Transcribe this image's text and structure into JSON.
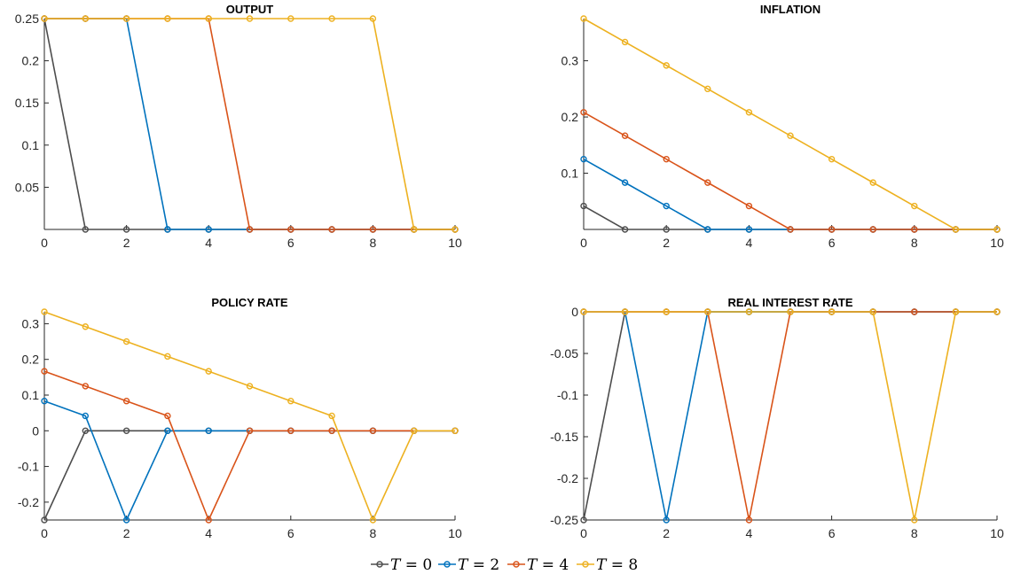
{
  "chart_data": [
    {
      "type": "line",
      "title": "OUTPUT",
      "xlim": [
        0,
        10
      ],
      "ylim": [
        0,
        0.25
      ],
      "xticks": [
        0,
        2,
        4,
        6,
        8,
        10
      ],
      "xtick_labels": [
        "0",
        "2",
        "4",
        "6",
        "8",
        "10"
      ],
      "yticks": [
        0.05,
        0.1,
        0.15,
        0.2,
        0.25
      ],
      "ytick_labels": [
        "0.05",
        "0.1",
        "0.15",
        "0.2",
        "0.25"
      ],
      "x": [
        0,
        1,
        2,
        3,
        4,
        5,
        6,
        7,
        8,
        9,
        10
      ],
      "series": [
        {
          "name": "T = 0",
          "values": [
            0.25,
            0,
            0,
            0,
            0,
            0,
            0,
            0,
            0,
            0,
            0
          ]
        },
        {
          "name": "T = 2",
          "values": [
            0.25,
            0.25,
            0.25,
            0,
            0,
            0,
            0,
            0,
            0,
            0,
            0
          ]
        },
        {
          "name": "T = 4",
          "values": [
            0.25,
            0.25,
            0.25,
            0.25,
            0.25,
            0,
            0,
            0,
            0,
            0,
            0
          ]
        },
        {
          "name": "T = 8",
          "values": [
            0.25,
            0.25,
            0.25,
            0.25,
            0.25,
            0.25,
            0.25,
            0.25,
            0.25,
            0,
            0
          ]
        }
      ]
    },
    {
      "type": "line",
      "title": "INFLATION",
      "xlim": [
        0,
        10
      ],
      "ylim": [
        0,
        0.375
      ],
      "xticks": [
        0,
        2,
        4,
        6,
        8,
        10
      ],
      "xtick_labels": [
        "0",
        "2",
        "4",
        "6",
        "8",
        "10"
      ],
      "yticks": [
        0.1,
        0.2,
        0.3
      ],
      "ytick_labels": [
        "0.1",
        "0.2",
        "0.3"
      ],
      "x": [
        0,
        1,
        2,
        3,
        4,
        5,
        6,
        7,
        8,
        9,
        10
      ],
      "series": [
        {
          "name": "T = 0",
          "values": [
            0.0417,
            0,
            0,
            0,
            0,
            0,
            0,
            0,
            0,
            0,
            0
          ]
        },
        {
          "name": "T = 2",
          "values": [
            0.125,
            0.0833,
            0.0417,
            0,
            0,
            0,
            0,
            0,
            0,
            0,
            0
          ]
        },
        {
          "name": "T = 4",
          "values": [
            0.2083,
            0.1667,
            0.125,
            0.0833,
            0.0417,
            0,
            0,
            0,
            0,
            0,
            0
          ]
        },
        {
          "name": "T = 8",
          "values": [
            0.375,
            0.3333,
            0.2917,
            0.25,
            0.2083,
            0.1667,
            0.125,
            0.0833,
            0.0417,
            0,
            0
          ]
        }
      ]
    },
    {
      "type": "line",
      "title": "POLICY RATE",
      "xlim": [
        0,
        10
      ],
      "ylim": [
        -0.25,
        0.3333
      ],
      "xticks": [
        0,
        2,
        4,
        6,
        8,
        10
      ],
      "xtick_labels": [
        "0",
        "2",
        "4",
        "6",
        "8",
        "10"
      ],
      "yticks": [
        -0.2,
        -0.1,
        0,
        0.1,
        0.2,
        0.3
      ],
      "ytick_labels": [
        "-0.2",
        "-0.1",
        "0",
        "0.1",
        "0.2",
        "0.3"
      ],
      "x": [
        0,
        1,
        2,
        3,
        4,
        5,
        6,
        7,
        8,
        9,
        10
      ],
      "series": [
        {
          "name": "T = 0",
          "values": [
            -0.25,
            0,
            0,
            0,
            0,
            0,
            0,
            0,
            0,
            0,
            0
          ]
        },
        {
          "name": "T = 2",
          "values": [
            0.0833,
            0.0417,
            -0.25,
            0,
            0,
            0,
            0,
            0,
            0,
            0,
            0
          ]
        },
        {
          "name": "T = 4",
          "values": [
            0.1667,
            0.125,
            0.0833,
            0.0417,
            -0.25,
            0,
            0,
            0,
            0,
            0,
            0
          ]
        },
        {
          "name": "T = 8",
          "values": [
            0.3333,
            0.2917,
            0.25,
            0.2083,
            0.1667,
            0.125,
            0.0833,
            0.0417,
            -0.25,
            0,
            0
          ]
        }
      ]
    },
    {
      "type": "line",
      "title": "REAL INTEREST RATE",
      "xlim": [
        0,
        10
      ],
      "ylim": [
        -0.25,
        0
      ],
      "xticks": [
        0,
        2,
        4,
        6,
        8,
        10
      ],
      "xtick_labels": [
        "0",
        "2",
        "4",
        "6",
        "8",
        "10"
      ],
      "yticks": [
        -0.25,
        -0.2,
        -0.15,
        -0.1,
        -0.05,
        0
      ],
      "ytick_labels": [
        "-0.25",
        "-0.2",
        "-0.15",
        "-0.1",
        "-0.05",
        "0"
      ],
      "x": [
        0,
        1,
        2,
        3,
        4,
        5,
        6,
        7,
        8,
        9,
        10
      ],
      "series": [
        {
          "name": "T = 0",
          "values": [
            -0.25,
            0,
            0,
            0,
            0,
            0,
            0,
            0,
            0,
            0,
            0
          ]
        },
        {
          "name": "T = 2",
          "values": [
            0,
            0,
            -0.25,
            0,
            0,
            0,
            0,
            0,
            0,
            0,
            0
          ]
        },
        {
          "name": "T = 4",
          "values": [
            0,
            0,
            0,
            0,
            -0.25,
            0,
            0,
            0,
            0,
            0,
            0
          ]
        },
        {
          "name": "T = 8",
          "values": [
            0,
            0,
            0,
            0,
            0,
            0,
            0,
            0,
            -0.25,
            0,
            0
          ]
        }
      ]
    }
  ],
  "series_colors": [
    "#4d4d4d",
    "#0072bd",
    "#d95319",
    "#edb120"
  ],
  "legend": {
    "position": "bottom-center",
    "entries": [
      {
        "var": "T",
        "eq": " = 0"
      },
      {
        "var": "T",
        "eq": " = 2"
      },
      {
        "var": "T",
        "eq": " = 4"
      },
      {
        "var": "T",
        "eq": " = 8"
      }
    ]
  }
}
